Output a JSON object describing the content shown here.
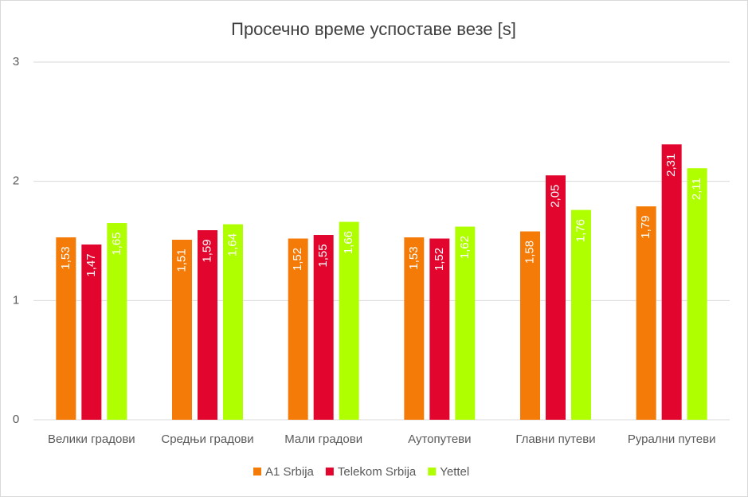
{
  "chart_data": {
    "type": "bar",
    "title": "Просечно време успоставе везе [s]",
    "categories": [
      "Велики градови",
      "Средњи градови",
      "Мали градови",
      "Аутопутеви",
      "Главни путеви",
      "Рурални путеви"
    ],
    "series": [
      {
        "name": "A1 Srbija",
        "color": "#f47b07",
        "values": [
          1.53,
          1.51,
          1.52,
          1.53,
          1.58,
          1.79
        ],
        "value_labels": [
          "1,53",
          "1,51",
          "1,52",
          "1,53",
          "1,58",
          "1,79"
        ]
      },
      {
        "name": "Telekom Srbija",
        "color": "#e2062e",
        "values": [
          1.47,
          1.59,
          1.55,
          1.52,
          2.05,
          2.31
        ],
        "value_labels": [
          "1,47",
          "1,59",
          "1,55",
          "1,52",
          "2,05",
          "2,31"
        ]
      },
      {
        "name": "Yettel",
        "color": "#b0ff00",
        "values": [
          1.65,
          1.64,
          1.66,
          1.62,
          1.76,
          2.11
        ],
        "value_labels": [
          "1,65",
          "1,64",
          "1,66",
          "1,62",
          "1,76",
          "2,11"
        ]
      }
    ],
    "ylim": [
      0,
      3
    ],
    "yticks": [
      0,
      1,
      2,
      3
    ],
    "grid": true,
    "legend": "bottom"
  }
}
